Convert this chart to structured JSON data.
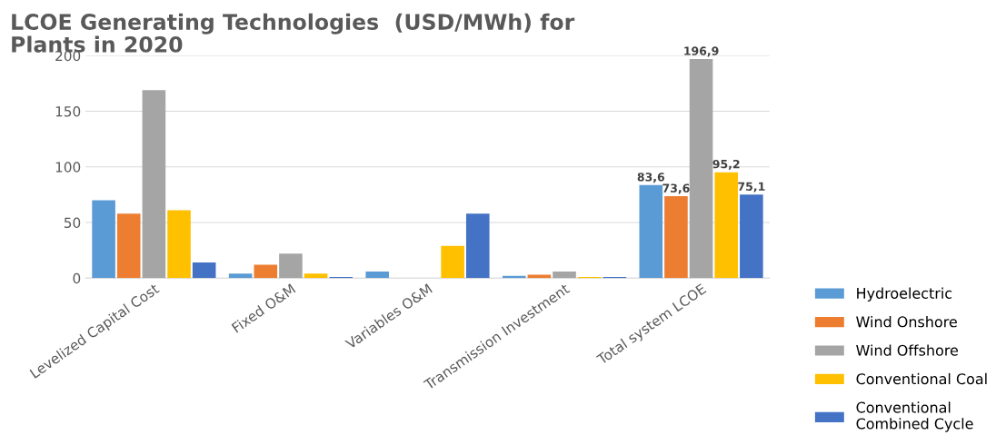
{
  "chart_data": {
    "type": "bar",
    "title": "LCOE Generating Technologies  (USD/MWh) for\nPlants in 2020",
    "categories": [
      "Levelized Capital Cost",
      "Fixed O&M",
      "Variables O&M",
      "Transmission Investment",
      "Total system LCOE"
    ],
    "series": [
      {
        "name": "Hydroelectric",
        "color": "#5b9bd5",
        "values": [
          70,
          4,
          6,
          2,
          83.6
        ],
        "value_labels": [
          null,
          null,
          null,
          null,
          "83,6"
        ]
      },
      {
        "name": "Wind Onshore",
        "color": "#ed7d31",
        "values": [
          58,
          12,
          0,
          3,
          73.6
        ],
        "value_labels": [
          null,
          null,
          null,
          null,
          "73,6"
        ]
      },
      {
        "name": "Wind Offshore",
        "color": "#a5a5a5",
        "values": [
          169,
          22,
          0,
          6,
          196.9
        ],
        "value_labels": [
          null,
          null,
          null,
          null,
          "196,9"
        ]
      },
      {
        "name": "Conventional Coal",
        "color": "#ffc000",
        "values": [
          61,
          4,
          29,
          1,
          95.2
        ],
        "value_labels": [
          null,
          null,
          null,
          null,
          "95,2"
        ]
      },
      {
        "name": "Conventional\nCombined Cycle",
        "color": "#4472c4",
        "values": [
          14,
          1,
          58,
          1,
          75.1
        ],
        "value_labels": [
          null,
          null,
          null,
          null,
          "75,1"
        ]
      }
    ],
    "ylim": [
      0,
      200
    ],
    "yticks": [
      0,
      50,
      100,
      150,
      200
    ],
    "grid": "y",
    "legend": "bottom right"
  }
}
